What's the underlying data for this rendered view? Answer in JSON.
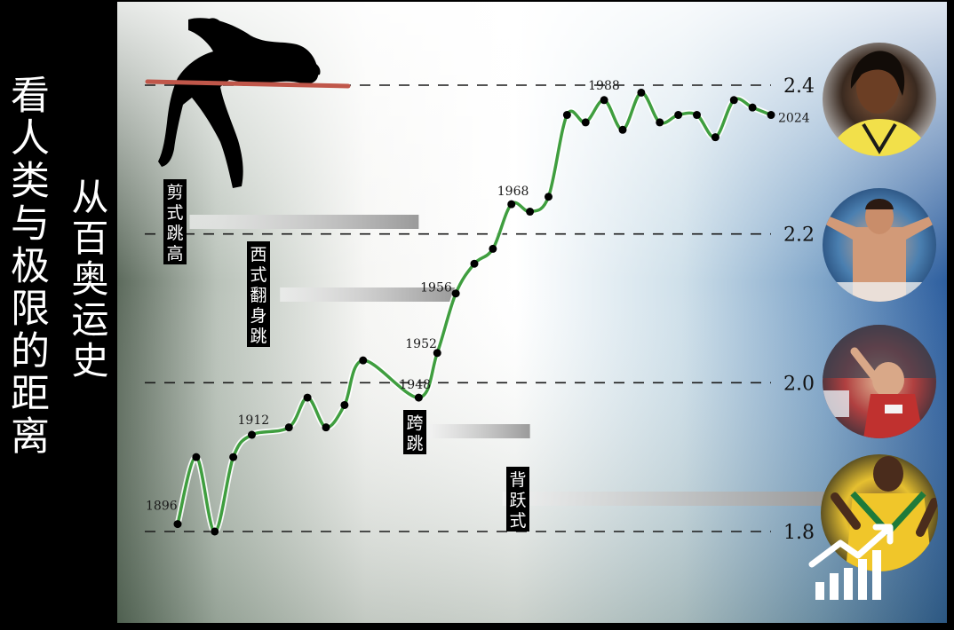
{
  "title": {
    "main": "看人类与极限的距离",
    "sub": "从百奥运史"
  },
  "chart_data": {
    "type": "line",
    "xlabel": "",
    "ylabel": "",
    "ylim": [
      1.8,
      2.4
    ],
    "yticks": [
      1.8,
      2.0,
      2.2,
      2.4
    ],
    "grid": "dashed horizontal",
    "series": [
      {
        "points": [
          [
            1896,
            1.81
          ],
          [
            1900,
            1.9
          ],
          [
            1904,
            1.8
          ],
          [
            1908,
            1.9
          ],
          [
            1912,
            1.93
          ],
          [
            1920,
            1.94
          ],
          [
            1924,
            1.98
          ],
          [
            1928,
            1.94
          ],
          [
            1932,
            1.97
          ],
          [
            1936,
            2.03
          ],
          [
            1948,
            1.98
          ],
          [
            1952,
            2.04
          ],
          [
            1956,
            2.12
          ],
          [
            1960,
            2.16
          ],
          [
            1964,
            2.18
          ],
          [
            1968,
            2.24
          ],
          [
            1972,
            2.23
          ],
          [
            1976,
            2.25
          ],
          [
            1980,
            2.36
          ],
          [
            1984,
            2.35
          ],
          [
            1988,
            2.38
          ],
          [
            1992,
            2.34
          ],
          [
            1996,
            2.39
          ],
          [
            2000,
            2.35
          ],
          [
            2004,
            2.36
          ],
          [
            2008,
            2.36
          ],
          [
            2012,
            2.33
          ],
          [
            2016,
            2.38
          ],
          [
            2020,
            2.37
          ],
          [
            2024,
            2.36
          ]
        ]
      }
    ],
    "year_labels": [
      1896,
      1912,
      1948,
      1952,
      1956,
      1968,
      1988,
      2024
    ],
    "line_color": "#3f9e3f",
    "point_color": "#000000"
  },
  "techniques": [
    {
      "label": "剪式跳高",
      "bar_start": 1912,
      "bar_end": 1948
    },
    {
      "label": "西式翻身跳",
      "bar_start": 1920,
      "bar_end": 1956
    },
    {
      "label": "跨跳",
      "bar_start": 1952,
      "bar_end": 1972
    },
    {
      "label": "背跃式",
      "bar_start": 1968,
      "bar_end": 2024
    }
  ],
  "icons": {
    "athlete": "high-jumper-silhouette-icon",
    "photos": [
      "athlete-photo-1",
      "athlete-photo-2",
      "athlete-photo-3",
      "athlete-photo-4"
    ],
    "logo": "bar-chart-logo-icon"
  }
}
